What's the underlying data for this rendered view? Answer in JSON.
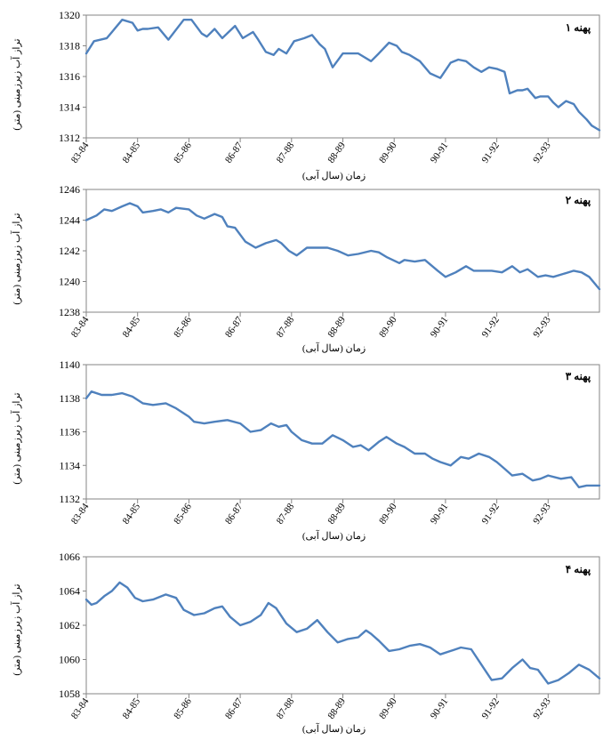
{
  "xlabel": "زمان (سال آبی)",
  "ylabel": "تراز آب زیرزمینی (متر)",
  "categories": [
    "83-84",
    "84-85",
    "85-86",
    "86-87",
    "87-88",
    "88-89",
    "89-90",
    "90-91",
    "91-92",
    "92-93"
  ],
  "colors": {
    "line": "#4f81bd",
    "axis": "#868686"
  },
  "chart_data": [
    {
      "type": "line",
      "title": "پهنه ۱",
      "xlabel": "زمان (سال آبی)",
      "ylabel": "تراز آب زیرزمینی (متر)",
      "ylim": [
        1312,
        1320
      ],
      "yticks": [
        1312,
        1314,
        1316,
        1318,
        1320
      ],
      "x_range": [
        0,
        10
      ],
      "categories": [
        "83-84",
        "84-85",
        "85-86",
        "86-87",
        "87-88",
        "88-89",
        "89-90",
        "90-91",
        "91-92",
        "92-93"
      ],
      "series": [
        {
          "x": [
            0,
            0.15,
            0.4,
            0.7,
            0.9,
            1.0,
            1.1,
            1.2,
            1.4,
            1.6,
            1.9,
            2.05,
            2.25,
            2.35,
            2.5,
            2.65,
            2.9,
            3.05,
            3.25,
            3.35,
            3.5,
            3.65,
            3.75,
            3.9,
            4.05,
            4.15,
            4.25,
            4.4,
            4.55,
            4.65,
            4.8,
            5.0,
            5.15,
            5.3,
            5.4,
            5.55,
            5.7,
            5.9,
            6.05,
            6.15,
            6.3,
            6.5,
            6.7,
            6.9,
            7.1,
            7.25,
            7.4,
            7.55,
            7.7,
            7.85,
            8.0,
            8.15,
            8.25,
            8.4,
            8.5,
            8.6,
            8.75,
            8.85,
            9.0,
            9.1,
            9.2,
            9.35,
            9.5,
            9.6,
            9.75,
            9.85,
            10.0
          ],
          "y": [
            1317.5,
            1318.3,
            1318.5,
            1319.7,
            1319.5,
            1319.0,
            1319.1,
            1319.1,
            1319.2,
            1318.4,
            1319.7,
            1319.7,
            1318.8,
            1318.6,
            1319.1,
            1318.5,
            1319.3,
            1318.5,
            1318.9,
            1318.4,
            1317.6,
            1317.4,
            1317.8,
            1317.5,
            1318.3,
            1318.4,
            1318.5,
            1318.7,
            1318.1,
            1317.8,
            1316.6,
            1317.5,
            1317.5,
            1317.5,
            1317.3,
            1317.0,
            1317.5,
            1318.2,
            1318.0,
            1317.6,
            1317.4,
            1317.0,
            1316.2,
            1315.9,
            1316.9,
            1317.1,
            1317.0,
            1316.6,
            1316.3,
            1316.6,
            1316.5,
            1316.3,
            1314.9,
            1315.1,
            1315.1,
            1315.2,
            1314.6,
            1314.7,
            1314.7,
            1314.3,
            1314.0,
            1314.4,
            1314.2,
            1313.7,
            1313.2,
            1312.8,
            1312.5
          ]
        }
      ]
    },
    {
      "type": "line",
      "title": "پهنه ۲",
      "xlabel": "زمان (سال آبی)",
      "ylabel": "تراز آب زیرزمینی (متر)",
      "ylim": [
        1238,
        1246
      ],
      "yticks": [
        1238,
        1240,
        1242,
        1244,
        1246
      ],
      "x_range": [
        0,
        10
      ],
      "categories": [
        "83-84",
        "84-85",
        "85-86",
        "86-87",
        "87-88",
        "88-89",
        "89-90",
        "90-91",
        "91-92",
        "92-93"
      ],
      "series": [
        {
          "x": [
            0,
            0.2,
            0.35,
            0.5,
            0.7,
            0.85,
            1.0,
            1.1,
            1.3,
            1.45,
            1.6,
            1.75,
            2.0,
            2.15,
            2.3,
            2.5,
            2.65,
            2.75,
            2.9,
            3.1,
            3.3,
            3.5,
            3.7,
            3.8,
            3.95,
            4.1,
            4.3,
            4.5,
            4.7,
            4.9,
            5.1,
            5.3,
            5.55,
            5.7,
            5.85,
            6.1,
            6.2,
            6.4,
            6.6,
            6.85,
            7.0,
            7.2,
            7.4,
            7.55,
            7.7,
            7.9,
            8.1,
            8.3,
            8.45,
            8.6,
            8.8,
            8.95,
            9.1,
            9.3,
            9.5,
            9.65,
            9.8,
            10.0
          ],
          "y": [
            1244.0,
            1244.3,
            1244.7,
            1244.6,
            1244.9,
            1245.1,
            1244.9,
            1244.5,
            1244.6,
            1244.7,
            1244.5,
            1244.8,
            1244.7,
            1244.3,
            1244.1,
            1244.4,
            1244.2,
            1243.6,
            1243.5,
            1242.6,
            1242.2,
            1242.5,
            1242.7,
            1242.5,
            1242.0,
            1241.7,
            1242.2,
            1242.2,
            1242.2,
            1242.0,
            1241.7,
            1241.8,
            1242.0,
            1241.9,
            1241.6,
            1241.2,
            1241.4,
            1241.3,
            1241.4,
            1240.7,
            1240.3,
            1240.6,
            1241.0,
            1240.7,
            1240.7,
            1240.7,
            1240.6,
            1241.0,
            1240.6,
            1240.8,
            1240.3,
            1240.4,
            1240.3,
            1240.5,
            1240.7,
            1240.6,
            1240.3,
            1239.5
          ]
        }
      ]
    },
    {
      "type": "line",
      "title": "پهنه ۳",
      "xlabel": "زمان (سال آبی)",
      "ylabel": "تراز آب زیرزمینی (متر)",
      "ylim": [
        1132,
        1140
      ],
      "yticks": [
        1132,
        1134,
        1136,
        1138,
        1140
      ],
      "x_range": [
        0,
        10
      ],
      "categories": [
        "83-84",
        "84-85",
        "85-86",
        "86-87",
        "87-88",
        "88-89",
        "89-90",
        "90-91",
        "91-92",
        "92-93"
      ],
      "series": [
        {
          "x": [
            0,
            0.1,
            0.3,
            0.5,
            0.7,
            0.9,
            1.1,
            1.3,
            1.55,
            1.75,
            2.0,
            2.1,
            2.3,
            2.5,
            2.75,
            3.0,
            3.2,
            3.4,
            3.6,
            3.75,
            3.9,
            4.0,
            4.2,
            4.4,
            4.6,
            4.8,
            5.0,
            5.2,
            5.35,
            5.5,
            5.7,
            5.85,
            6.05,
            6.2,
            6.4,
            6.6,
            6.75,
            6.9,
            7.1,
            7.3,
            7.45,
            7.65,
            7.85,
            8.0,
            8.15,
            8.3,
            8.5,
            8.7,
            8.85,
            9.0,
            9.25,
            9.45,
            9.6,
            9.75,
            10.0
          ],
          "y": [
            1138.0,
            1138.4,
            1138.2,
            1138.2,
            1138.3,
            1138.1,
            1137.7,
            1137.6,
            1137.7,
            1137.4,
            1136.9,
            1136.6,
            1136.5,
            1136.6,
            1136.7,
            1136.5,
            1136.0,
            1136.1,
            1136.5,
            1136.3,
            1136.4,
            1136.0,
            1135.5,
            1135.3,
            1135.3,
            1135.8,
            1135.5,
            1135.1,
            1135.2,
            1134.9,
            1135.4,
            1135.7,
            1135.3,
            1135.1,
            1134.7,
            1134.7,
            1134.4,
            1134.2,
            1134.0,
            1134.5,
            1134.4,
            1134.7,
            1134.5,
            1134.2,
            1133.8,
            1133.4,
            1133.5,
            1133.1,
            1133.2,
            1133.4,
            1133.2,
            1133.3,
            1132.7,
            1132.8,
            1132.8
          ]
        }
      ]
    },
    {
      "type": "line",
      "title": "پهنه ۴",
      "xlabel": "زمان (سال آبی)",
      "ylabel": "تراز آب زیرزمینی (متر)",
      "ylim": [
        1058,
        1066
      ],
      "yticks": [
        1058,
        1060,
        1062,
        1064,
        1066
      ],
      "x_range": [
        0,
        10
      ],
      "categories": [
        "83-84",
        "84-85",
        "85-86",
        "86-87",
        "87-88",
        "88-89",
        "89-90",
        "90-91",
        "91-92",
        "92-93"
      ],
      "series": [
        {
          "x": [
            0,
            0.1,
            0.2,
            0.35,
            0.5,
            0.65,
            0.8,
            0.95,
            1.1,
            1.3,
            1.55,
            1.75,
            1.9,
            2.1,
            2.3,
            2.5,
            2.65,
            2.8,
            3.0,
            3.2,
            3.4,
            3.55,
            3.7,
            3.9,
            4.1,
            4.3,
            4.5,
            4.7,
            4.9,
            5.1,
            5.3,
            5.45,
            5.55,
            5.7,
            5.9,
            6.1,
            6.3,
            6.5,
            6.7,
            6.9,
            7.1,
            7.3,
            7.5,
            7.7,
            7.9,
            8.1,
            8.3,
            8.5,
            8.65,
            8.8,
            9.0,
            9.2,
            9.4,
            9.6,
            9.8,
            10.0
          ],
          "y": [
            1063.5,
            1063.2,
            1063.3,
            1063.7,
            1064.0,
            1064.5,
            1064.2,
            1063.6,
            1063.4,
            1063.5,
            1063.8,
            1063.6,
            1062.9,
            1062.6,
            1062.7,
            1063.0,
            1063.1,
            1062.5,
            1062.0,
            1062.2,
            1062.6,
            1063.3,
            1063.0,
            1062.1,
            1061.6,
            1061.8,
            1062.3,
            1061.6,
            1061.0,
            1061.2,
            1061.3,
            1061.7,
            1061.5,
            1061.1,
            1060.5,
            1060.6,
            1060.8,
            1060.9,
            1060.7,
            1060.3,
            1060.5,
            1060.7,
            1060.6,
            1059.7,
            1058.8,
            1058.9,
            1059.5,
            1060.0,
            1059.5,
            1059.4,
            1058.6,
            1058.8,
            1059.2,
            1059.7,
            1059.4,
            1058.9
          ]
        }
      ]
    }
  ]
}
